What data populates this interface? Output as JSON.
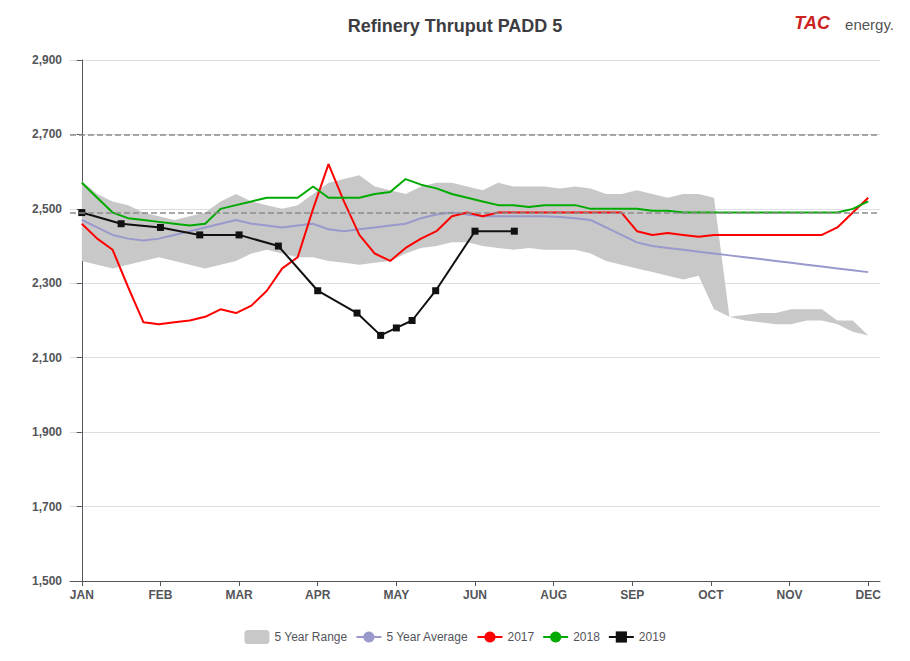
{
  "chart_data": {
    "type": "line",
    "title": "Refinery Thruput PADD 5",
    "annotations": [
      "TAC",
      "energy."
    ],
    "x": [
      0,
      0.196078,
      0.392157,
      0.588235,
      0.784314,
      0.980392,
      1.176471,
      1.372549,
      1.568627,
      1.764706,
      1.960784,
      2.156863,
      2.352941,
      2.54902,
      2.745098,
      2.941176,
      3.137255,
      3.333333,
      3.529412,
      3.72549,
      3.921569,
      4.117647,
      4.313725,
      4.509804,
      4.705882,
      4.901961,
      5.098039,
      5.294118,
      5.490196,
      5.686275,
      5.882353,
      6.078431,
      6.27451,
      6.470588,
      6.666667,
      6.862745,
      7.058824,
      7.254902,
      7.45098,
      7.647059,
      7.843137,
      8.039216,
      8.235294,
      8.431373,
      8.627451,
      8.823529,
      9.019608,
      9.215686,
      9.411765,
      9.607843,
      9.803922,
      10
    ],
    "series": [
      {
        "name": "5 Year Range",
        "type": "range",
        "color": "#C8C8C8",
        "upper": [
          2575,
          2540,
          2520,
          2510,
          2490,
          2480,
          2470,
          2480,
          2490,
          2520,
          2540,
          2520,
          2510,
          2500,
          2510,
          2540,
          2570,
          2580,
          2590,
          2560,
          2550,
          2540,
          2560,
          2570,
          2570,
          2560,
          2550,
          2570,
          2560,
          2560,
          2560,
          2555,
          2560,
          2555,
          2540,
          2540,
          2550,
          2540,
          2530,
          2540,
          2540,
          2530,
          2210,
          2215,
          2220,
          2220,
          2230,
          2230,
          2230,
          2200,
          2200,
          2160
        ],
        "lower": [
          2360,
          2350,
          2340,
          2350,
          2360,
          2370,
          2360,
          2350,
          2340,
          2350,
          2360,
          2380,
          2390,
          2380,
          2370,
          2370,
          2360,
          2355,
          2350,
          2355,
          2360,
          2380,
          2395,
          2400,
          2410,
          2410,
          2400,
          2395,
          2390,
          2395,
          2390,
          2390,
          2390,
          2380,
          2360,
          2350,
          2340,
          2330,
          2320,
          2310,
          2320,
          2230,
          2210,
          2200,
          2195,
          2190,
          2190,
          2200,
          2200,
          2190,
          2170,
          2160
        ]
      },
      {
        "name": "5 Year Average",
        "color": "#9999CC",
        "values": [
          2470,
          2450,
          2430,
          2420,
          2415,
          2420,
          2430,
          2440,
          2450,
          2460,
          2470,
          2460,
          2455,
          2450,
          2455,
          2460,
          2445,
          2440,
          2445,
          2450,
          2455,
          2460,
          2475,
          2485,
          2490,
          2485,
          2480,
          2480,
          2480,
          2480,
          2480,
          2478,
          2475,
          2470,
          2450,
          2430,
          2410,
          2400,
          2395,
          2390,
          2385,
          2380,
          2375,
          2370,
          2365,
          2360,
          2355,
          2350,
          2345,
          2340,
          2335,
          2330
        ]
      },
      {
        "name": "2017",
        "color": "#FF0000",
        "values": [
          2460,
          2420,
          2390,
          2290,
          2195,
          2190,
          2195,
          2200,
          2210,
          2230,
          2220,
          2240,
          2280,
          2340,
          2370,
          2500,
          2620,
          2520,
          2430,
          2380,
          2360,
          2395,
          2420,
          2440,
          2480,
          2490,
          2480,
          2490,
          2490,
          2490,
          2490,
          2490,
          2490,
          2490,
          2490,
          2490,
          2440,
          2430,
          2435,
          2430,
          2425,
          2430,
          2430,
          2430,
          2430,
          2430,
          2430,
          2430,
          2430,
          2450,
          2490,
          2530
        ]
      },
      {
        "name": "2018",
        "color": "#00AA00",
        "values": [
          2570,
          2530,
          2490,
          2475,
          2470,
          2465,
          2460,
          2455,
          2460,
          2500,
          2510,
          2520,
          2530,
          2530,
          2530,
          2560,
          2530,
          2530,
          2530,
          2540,
          2545,
          2580,
          2565,
          2555,
          2540,
          2530,
          2520,
          2510,
          2510,
          2505,
          2510,
          2510,
          2510,
          2500,
          2500,
          2500,
          2500,
          2495,
          2495,
          2490,
          2490,
          2490,
          2490,
          2490,
          2490,
          2490,
          2490,
          2490,
          2490,
          2490,
          2500,
          2520
        ]
      },
      {
        "name": "2019",
        "color": "#111111",
        "marker": "square",
        "x": [
          0,
          0.5,
          1,
          1.5,
          2,
          2.5,
          3,
          3.5,
          3.8,
          4,
          4.2,
          4.5,
          5,
          5.5
        ],
        "values": [
          2490,
          2460,
          2450,
          2430,
          2430,
          2400,
          2280,
          2220,
          2160,
          2180,
          2200,
          2280,
          2440,
          2440
        ]
      }
    ],
    "hlines": [
      2490,
      2700
    ],
    "xlim": [
      -0.15,
      10.15
    ],
    "xticks": [
      {
        "value": 0,
        "label": "JAN"
      },
      {
        "value": 1,
        "label": "FEB"
      },
      {
        "value": 2,
        "label": "MAR"
      },
      {
        "value": 3,
        "label": "APR"
      },
      {
        "value": 4,
        "label": "MAY"
      },
      {
        "value": 5,
        "label": "JUN"
      },
      {
        "value": 6,
        "label": "AUG"
      },
      {
        "value": 7,
        "label": "SEP"
      },
      {
        "value": 8,
        "label": "OCT"
      },
      {
        "value": 9,
        "label": "NOV"
      },
      {
        "value": 10,
        "label": "DEC"
      }
    ],
    "ylim": [
      1500,
      2900
    ],
    "yticks": [
      {
        "value": 1500,
        "label": "1,500"
      },
      {
        "value": 1700,
        "label": "1,700"
      },
      {
        "value": 1900,
        "label": "1,900"
      },
      {
        "value": 2100,
        "label": "2,100"
      },
      {
        "value": 2300,
        "label": "2,300"
      },
      {
        "value": 2500,
        "label": "2,500"
      },
      {
        "value": 2700,
        "label": "2,700"
      },
      {
        "value": 2900,
        "label": "2,900"
      }
    ],
    "grid": true,
    "legend": "bottom"
  }
}
